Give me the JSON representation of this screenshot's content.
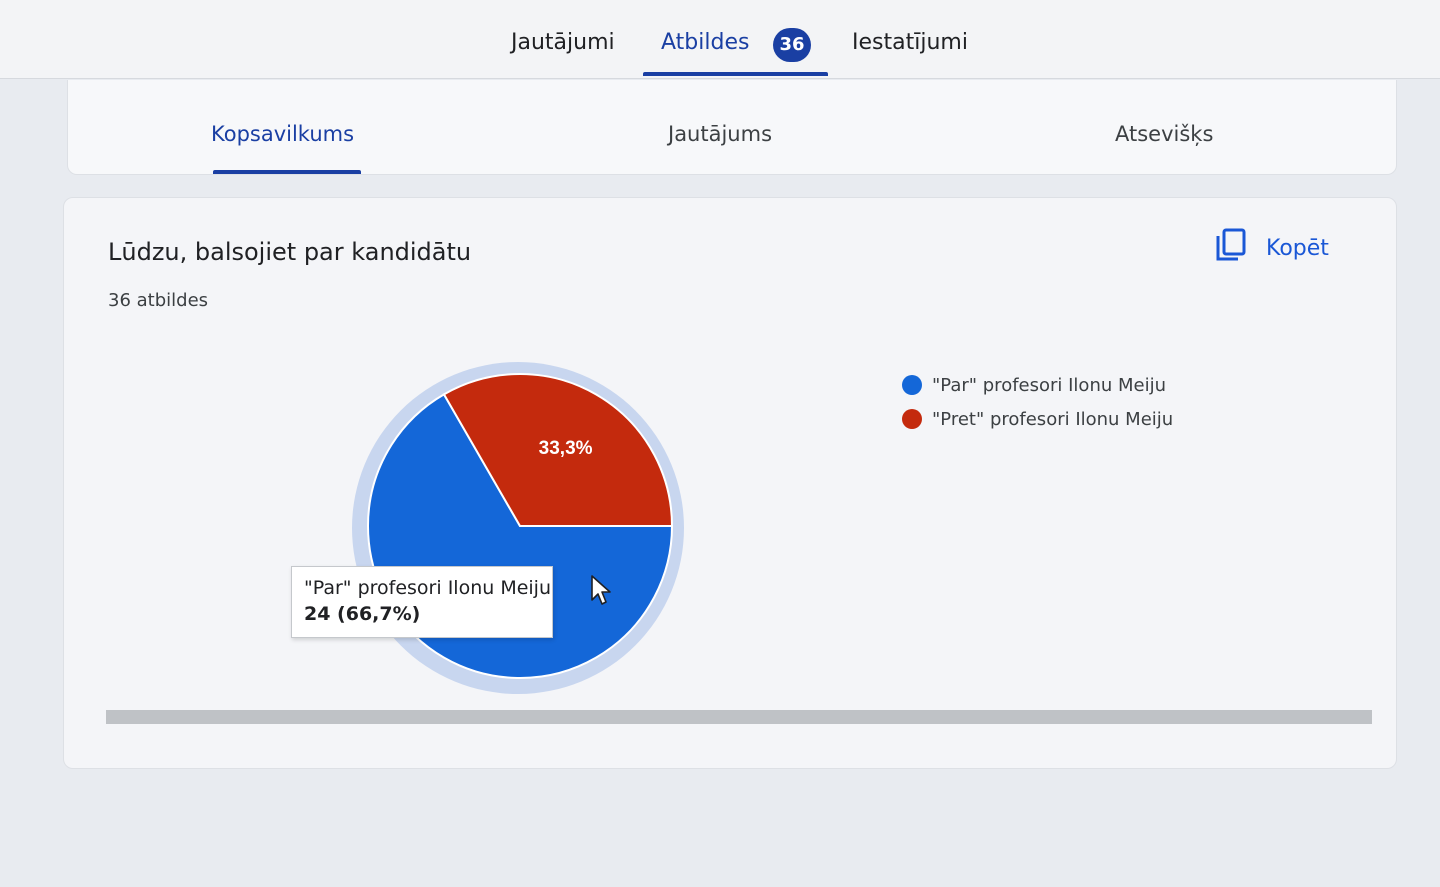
{
  "top_tabs": {
    "questions": "Jautājumi",
    "responses": "Atbildes",
    "responses_badge": "36",
    "settings": "Iestatījumi"
  },
  "sub_tabs": {
    "summary": "Kopsavilkums",
    "question": "Jautājums",
    "individual": "Atsevišķs"
  },
  "card": {
    "question_title": "Lūdzu, balsojiet par kandidātu",
    "response_count": "36 atbildes",
    "copy_label": "Kopēt",
    "copy_icon": "copy-icon"
  },
  "tooltip": {
    "label": "\"Par\" profesori Ilonu Meiju",
    "value": "24 (66,7%)"
  },
  "chart_data": {
    "type": "pie",
    "title": "",
    "categories": [
      "\"Par\" profesori Ilonu Meiju",
      "\"Pret\" profesori Ilonu Meiju"
    ],
    "values": [
      24,
      12
    ],
    "percent_labels": [
      "",
      "33,3%"
    ],
    "colors": [
      "#1467d8",
      "#c42a0d"
    ],
    "legend_position": "right",
    "highlighted_slice": 0
  }
}
